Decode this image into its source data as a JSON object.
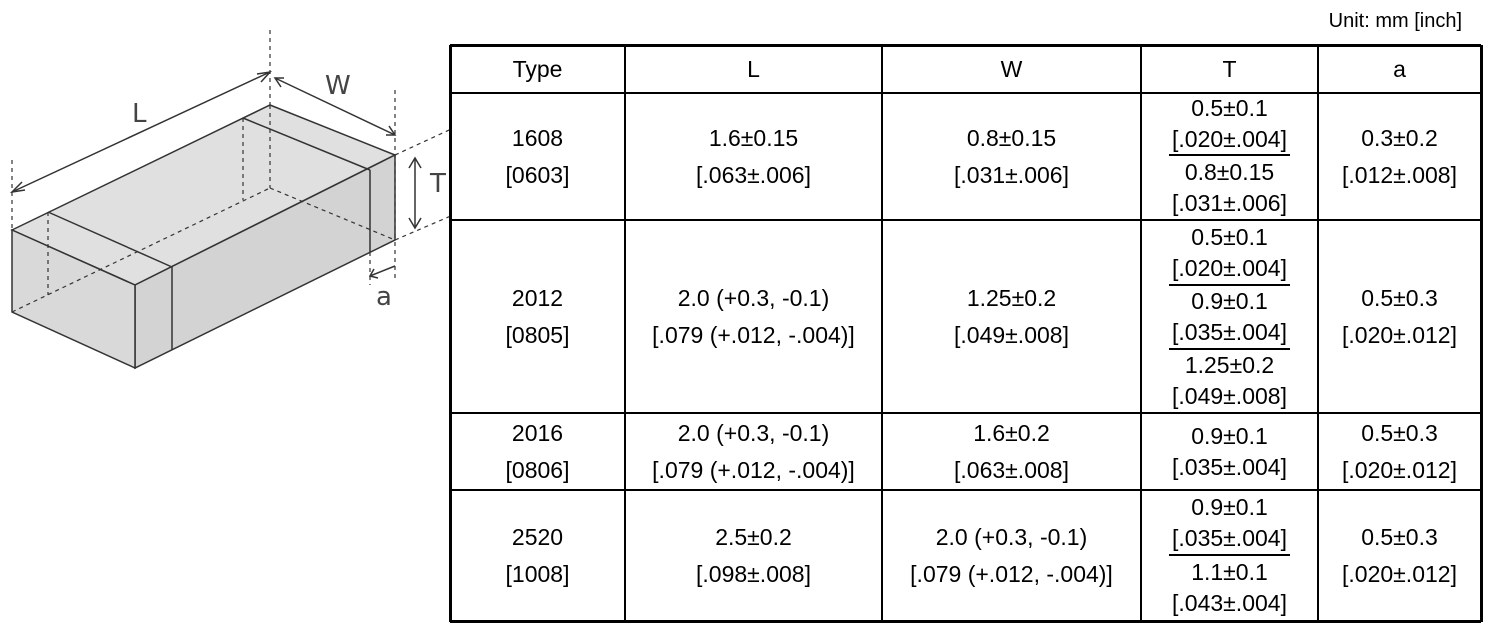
{
  "unit": "Unit: mm [inch]",
  "diagram": {
    "L": "L",
    "W": "W",
    "T": "T",
    "a": "a"
  },
  "table": {
    "header": [
      "Type",
      "L",
      "W",
      "T",
      "a"
    ],
    "rows": [
      {
        "type": [
          "1608",
          "[0603]"
        ],
        "L": [
          "1.6±0.15",
          "[.063±.006]"
        ],
        "W": [
          "0.8±0.15",
          "[.031±.006]"
        ],
        "T": [
          [
            "0.5±0.1",
            "[.020±.004]"
          ],
          [
            "0.8±0.15",
            "[.031±.006]"
          ]
        ],
        "a": [
          "0.3±0.2",
          "[.012±.008]"
        ]
      },
      {
        "type": [
          "2012",
          "[0805]"
        ],
        "L": [
          "2.0 (+0.3, -0.1)",
          "[.079 (+.012, -.004)]"
        ],
        "W": [
          "1.25±0.2",
          "[.049±.008]"
        ],
        "T": [
          [
            "0.5±0.1",
            "[.020±.004]"
          ],
          [
            "0.9±0.1",
            "[.035±.004]"
          ],
          [
            "1.25±0.2",
            "[.049±.008]"
          ]
        ],
        "a": [
          "0.5±0.3",
          "[.020±.012]"
        ]
      },
      {
        "type": [
          "2016",
          "[0806]"
        ],
        "L": [
          "2.0 (+0.3, -0.1)",
          "[.079 (+.012, -.004)]"
        ],
        "W": [
          "1.6±0.2",
          "[.063±.008]"
        ],
        "T": [
          [
            "0.9±0.1",
            "[.035±.004]"
          ]
        ],
        "a": [
          "0.5±0.3",
          "[.020±.012]"
        ]
      },
      {
        "type": [
          "2520",
          "[1008]"
        ],
        "L": [
          "2.5±0.2",
          "[.098±.008]"
        ],
        "W": [
          "2.0 (+0.3, -0.1)",
          "[.079 (+.012, -.004)]"
        ],
        "T": [
          [
            "0.9±0.1",
            "[.035±.004]"
          ],
          [
            "1.1±0.1",
            "[.043±.004]"
          ]
        ],
        "a": [
          "0.5±0.3",
          "[.020±.012]"
        ]
      }
    ]
  }
}
